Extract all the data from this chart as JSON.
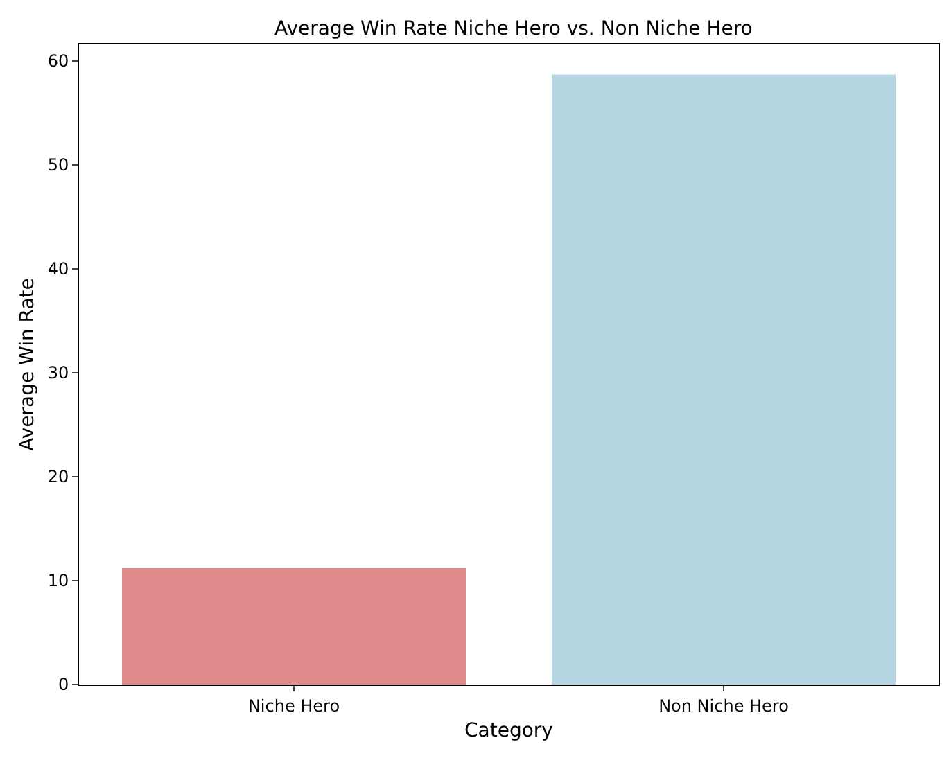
{
  "chart_data": {
    "type": "bar",
    "title": "Average Win Rate Niche Hero vs. Non Niche Hero",
    "xlabel": "Category",
    "ylabel": "Average Win Rate",
    "categories": [
      "Niche Hero",
      "Non Niche Hero"
    ],
    "values": [
      11.2,
      58.7
    ],
    "colors": [
      "#e08b8b",
      "#b4d5e1"
    ],
    "ylim": [
      0,
      61.6
    ],
    "yticks": [
      0,
      10,
      20,
      30,
      40,
      50,
      60
    ]
  }
}
